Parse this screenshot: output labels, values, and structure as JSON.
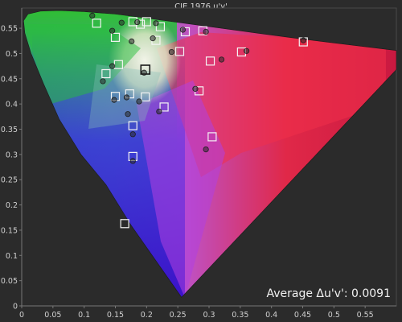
{
  "chart_data": {
    "type": "scatter",
    "title": "CIE 1976 u'v'",
    "xlim": [
      0,
      0.6
    ],
    "ylim": [
      0,
      0.59
    ],
    "x_ticks": [
      "0",
      "0.05",
      "0.1",
      "0.15",
      "0.2",
      "0.25",
      "0.3",
      "0.35",
      "0.4",
      "0.45",
      "0.5",
      "0.55"
    ],
    "y_ticks": [
      "0",
      "0.05",
      "0.1",
      "0.15",
      "0.2",
      "0.25",
      "0.3",
      "0.35",
      "0.4",
      "0.45",
      "0.5",
      "0.55"
    ],
    "grid": false,
    "annotation": "Average Δu'v': 0.0091",
    "white_point": [
      0.198,
      0.468
    ],
    "target_points": [
      [
        0.451,
        0.523
      ],
      [
        0.352,
        0.503
      ],
      [
        0.302,
        0.485
      ],
      [
        0.253,
        0.504
      ],
      [
        0.215,
        0.526
      ],
      [
        0.262,
        0.543
      ],
      [
        0.29,
        0.545
      ],
      [
        0.222,
        0.553
      ],
      [
        0.19,
        0.558
      ],
      [
        0.15,
        0.532
      ],
      [
        0.12,
        0.56
      ],
      [
        0.178,
        0.563
      ],
      [
        0.2,
        0.563
      ],
      [
        0.155,
        0.478
      ],
      [
        0.135,
        0.46
      ],
      [
        0.173,
        0.42
      ],
      [
        0.15,
        0.415
      ],
      [
        0.198,
        0.414
      ],
      [
        0.228,
        0.394
      ],
      [
        0.284,
        0.426
      ],
      [
        0.178,
        0.357
      ],
      [
        0.305,
        0.335
      ],
      [
        0.178,
        0.296
      ],
      [
        0.165,
        0.163
      ]
    ],
    "measured_points": [
      [
        0.451,
        0.526
      ],
      [
        0.36,
        0.505
      ],
      [
        0.32,
        0.488
      ],
      [
        0.24,
        0.503
      ],
      [
        0.21,
        0.53
      ],
      [
        0.258,
        0.547
      ],
      [
        0.295,
        0.543
      ],
      [
        0.215,
        0.56
      ],
      [
        0.185,
        0.562
      ],
      [
        0.145,
        0.545
      ],
      [
        0.113,
        0.575
      ],
      [
        0.16,
        0.561
      ],
      [
        0.176,
        0.524
      ],
      [
        0.145,
        0.475
      ],
      [
        0.13,
        0.445
      ],
      [
        0.148,
        0.408
      ],
      [
        0.168,
        0.413
      ],
      [
        0.188,
        0.405
      ],
      [
        0.22,
        0.385
      ],
      [
        0.278,
        0.43
      ],
      [
        0.17,
        0.38
      ],
      [
        0.295,
        0.31
      ],
      [
        0.178,
        0.34
      ],
      [
        0.178,
        0.287
      ],
      [
        0.196,
        0.462
      ]
    ]
  }
}
